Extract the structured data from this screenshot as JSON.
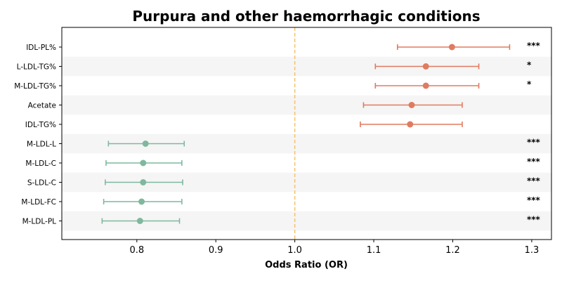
{
  "chart_data": {
    "type": "forest",
    "title": "Purpura and other haemorrhagic conditions",
    "xlabel": "Odds Ratio (OR)",
    "xlim": [
      0.705,
      1.325
    ],
    "xticks": [
      "0.8",
      "0.9",
      "1.0",
      "1.1",
      "1.2",
      "1.3"
    ],
    "reference_line": 1.0,
    "colors": {
      "risk": "#e07b5f",
      "protective": "#7fb89e",
      "reference": "#f5c26b",
      "band": "#f5f5f5"
    },
    "rows": [
      {
        "label": "IDL-PL%",
        "or": 1.199,
        "lower": 1.13,
        "upper": 1.272,
        "sig": "***"
      },
      {
        "label": "L-LDL-TG%",
        "or": 1.166,
        "lower": 1.102,
        "upper": 1.233,
        "sig": "*"
      },
      {
        "label": "M-LDL-TG%",
        "or": 1.166,
        "lower": 1.102,
        "upper": 1.233,
        "sig": "*"
      },
      {
        "label": "Acetate",
        "or": 1.148,
        "lower": 1.087,
        "upper": 1.212,
        "sig": ""
      },
      {
        "label": "IDL-TG%",
        "or": 1.146,
        "lower": 1.083,
        "upper": 1.212,
        "sig": ""
      },
      {
        "label": "M-LDL-L",
        "or": 0.811,
        "lower": 0.764,
        "upper": 0.86,
        "sig": "***"
      },
      {
        "label": "M-LDL-C",
        "or": 0.808,
        "lower": 0.761,
        "upper": 0.857,
        "sig": "***"
      },
      {
        "label": "S-LDL-C",
        "or": 0.808,
        "lower": 0.76,
        "upper": 0.858,
        "sig": "***"
      },
      {
        "label": "M-LDL-FC",
        "or": 0.806,
        "lower": 0.758,
        "upper": 0.857,
        "sig": "***"
      },
      {
        "label": "M-LDL-PL",
        "or": 0.804,
        "lower": 0.756,
        "upper": 0.854,
        "sig": "***"
      }
    ]
  }
}
